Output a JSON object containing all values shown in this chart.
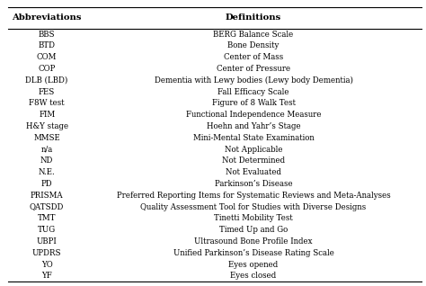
{
  "title_left": "Abbreviations",
  "title_right": "Definitions",
  "rows": [
    [
      "BBS",
      "BERG Balance Scale"
    ],
    [
      "BTD",
      "Bone Density"
    ],
    [
      "COM",
      "Center of Mass"
    ],
    [
      "COP",
      "Center of Pressure"
    ],
    [
      "DLB (LBD)",
      "Dementia with Lewy bodies (Lewy body Dementia)"
    ],
    [
      "FES",
      "Fall Efficacy Scale"
    ],
    [
      "F8W test",
      "Figure of 8 Walk Test"
    ],
    [
      "FIM",
      "Functional Independence Measure"
    ],
    [
      "H&Y stage",
      "Hoehn and Yahr’s Stage"
    ],
    [
      "MMSE",
      "Mini-Mental State Examination"
    ],
    [
      "n/a",
      "Not Applicable"
    ],
    [
      "ND",
      "Not Determined"
    ],
    [
      "N.E.",
      "Not Evaluated"
    ],
    [
      "PD",
      "Parkinson’s Disease"
    ],
    [
      "PRISMA",
      "Preferred Reporting Items for Systematic Reviews and Meta-Analyses"
    ],
    [
      "QATSDD",
      "Quality Assessment Tool for Studies with Diverse Designs"
    ],
    [
      "TMT",
      "Tinetti Mobility Test"
    ],
    [
      "TUG",
      "Timed Up and Go"
    ],
    [
      "UBPI",
      "Ultrasound Bone Profile Index"
    ],
    [
      "UPDRS",
      "Unified Parkinson’s Disease Rating Scale"
    ],
    [
      "YO",
      "Eyes opened"
    ],
    [
      "YF",
      "Eyes closed"
    ]
  ],
  "background_color": "#ffffff",
  "header_fontsize": 7.2,
  "row_fontsize": 6.2,
  "col_split": 0.2,
  "fig_width": 4.74,
  "fig_height": 3.18,
  "dpi": 100
}
